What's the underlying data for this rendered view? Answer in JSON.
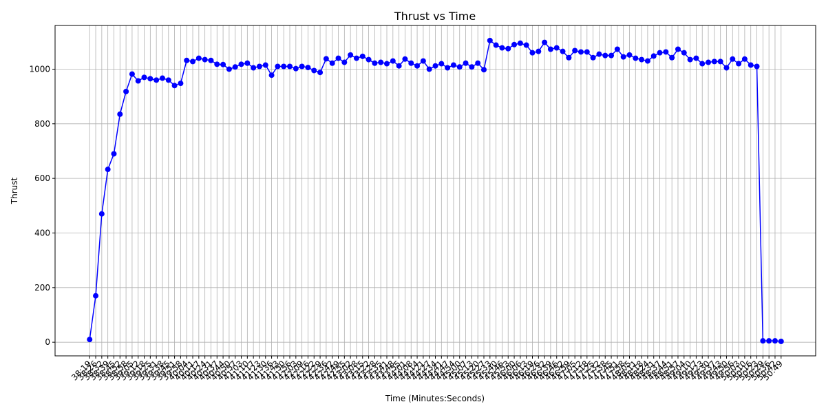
{
  "chart_data": {
    "type": "line",
    "title": "Thrust vs Time",
    "xlabel": "Time (Minutes:Seconds)",
    "ylabel": "Thrust",
    "categories": [
      "38:19",
      "38:26",
      "38:32",
      "38:39",
      "38:45",
      "38:52",
      "38:58",
      "39:05",
      "39:12",
      "39:18",
      "39:25",
      "39:31",
      "39:38",
      "39:45",
      "39:51",
      "39:58",
      "40:04",
      "40:11",
      "40:17",
      "40:24",
      "40:31",
      "40:37",
      "40:44",
      "40:50",
      "40:57",
      "41:03",
      "41:10",
      "41:17",
      "41:23",
      "41:30",
      "41:36",
      "41:43",
      "41:50",
      "41:56",
      "42:03",
      "42:09",
      "42:16",
      "42:22",
      "42:29",
      "42:36",
      "42:42",
      "42:49",
      "42:55",
      "43:02",
      "43:08",
      "43:15",
      "43:22",
      "43:28",
      "43:35",
      "43:41",
      "43:48",
      "43:55",
      "44:01",
      "44:08",
      "44:14",
      "44:21",
      "44:27",
      "44:34",
      "44:41",
      "44:47",
      "44:54",
      "45:00",
      "45:07",
      "45:13",
      "45:20",
      "45:27",
      "45:33",
      "45:40",
      "45:46",
      "45:53",
      "46:00",
      "46:06",
      "46:13",
      "46:19",
      "46:26",
      "46:32",
      "46:39",
      "46:46",
      "46:52",
      "46:59",
      "47:05",
      "47:12",
      "47:18",
      "47:25",
      "47:32",
      "47:38",
      "47:45",
      "47:51",
      "47:58",
      "48:05",
      "48:11",
      "48:18",
      "48:24",
      "48:31",
      "48:37",
      "48:44",
      "48:51",
      "48:57",
      "49:04",
      "49:10",
      "49:17",
      "49:23",
      "49:30",
      "49:37",
      "49:43",
      "49:50",
      "49:56",
      "50:03",
      "50:10",
      "50:16",
      "50:23",
      "50:29",
      "50:36",
      "50:42",
      "50:49"
    ],
    "values": [
      10,
      170,
      470,
      633,
      690,
      835,
      918,
      982,
      957,
      970,
      965,
      960,
      967,
      960,
      940,
      948,
      1032,
      1028,
      1040,
      1035,
      1032,
      1018,
      1017,
      1000,
      1008,
      1018,
      1022,
      1005,
      1010,
      1015,
      978,
      1010,
      1010,
      1010,
      1002,
      1010,
      1006,
      995,
      988,
      1038,
      1022,
      1040,
      1025,
      1052,
      1040,
      1047,
      1035,
      1022,
      1025,
      1020,
      1030,
      1012,
      1037,
      1022,
      1012,
      1030,
      1000,
      1012,
      1020,
      1005,
      1015,
      1008,
      1022,
      1008,
      1022,
      998,
      1105,
      1088,
      1078,
      1075,
      1090,
      1095,
      1088,
      1060,
      1065,
      1098,
      1073,
      1078,
      1065,
      1042,
      1068,
      1063,
      1063,
      1042,
      1055,
      1050,
      1050,
      1073,
      1045,
      1052,
      1040,
      1035,
      1030,
      1048,
      1060,
      1063,
      1042,
      1073,
      1060,
      1035,
      1040,
      1020,
      1025,
      1028,
      1028,
      1005,
      1037,
      1020,
      1037,
      1015,
      1010,
      5,
      5,
      5,
      3
    ],
    "color": "#0000ff",
    "ylim": [
      -50,
      1160
    ],
    "yticks": [
      0,
      200,
      400,
      600,
      800,
      1000
    ],
    "grid": true
  }
}
